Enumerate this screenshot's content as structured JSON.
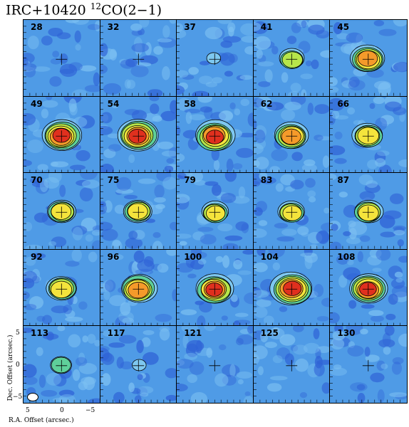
{
  "title": {
    "source": "IRC+10420",
    "isotope_sup": "12",
    "line": "CO(2−1)"
  },
  "axes": {
    "ylabel": "Dec. Offset (arcsec.)",
    "xlabel": "R.A. Offset (arcsec.)",
    "yticks": [
      "5",
      "0",
      "−5"
    ],
    "xticks": [
      "5",
      "0",
      "−5"
    ]
  },
  "channels": [
    {
      "label": "28",
      "peak": 0.0
    },
    {
      "label": "32",
      "peak": 0.0
    },
    {
      "label": "37",
      "peak": 0.15
    },
    {
      "label": "41",
      "peak": 0.45
    },
    {
      "label": "45",
      "peak": 0.7
    },
    {
      "label": "49",
      "peak": 0.85
    },
    {
      "label": "54",
      "peak": 0.88
    },
    {
      "label": "58",
      "peak": 0.85
    },
    {
      "label": "62",
      "peak": 0.7
    },
    {
      "label": "66",
      "peak": 0.6
    },
    {
      "label": "70",
      "peak": 0.55
    },
    {
      "label": "75",
      "peak": 0.55
    },
    {
      "label": "79",
      "peak": 0.5
    },
    {
      "label": "83",
      "peak": 0.5
    },
    {
      "label": "87",
      "peak": 0.55
    },
    {
      "label": "92",
      "peak": 0.6
    },
    {
      "label": "96",
      "peak": 0.75
    },
    {
      "label": "100",
      "peak": 0.8
    },
    {
      "label": "104",
      "peak": 0.92
    },
    {
      "label": "108",
      "peak": 0.8
    },
    {
      "label": "113",
      "peak": 0.35
    },
    {
      "label": "117",
      "peak": 0.15
    },
    {
      "label": "121",
      "peak": 0.0
    },
    {
      "label": "125",
      "peak": 0.0
    },
    {
      "label": "130",
      "peak": 0.0
    }
  ],
  "colors": {
    "background": "#4f9be6",
    "levels": [
      "#7ec8f0",
      "#5fd09a",
      "#b7e64a",
      "#f4e43c",
      "#f59a2a",
      "#e0301e",
      "#a01d7a"
    ]
  }
}
